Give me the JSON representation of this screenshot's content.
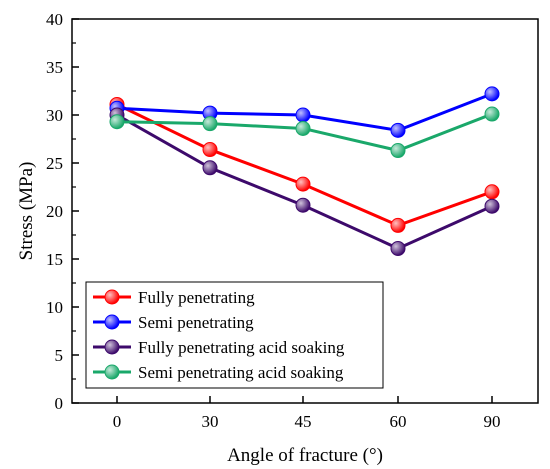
{
  "chart_data": {
    "type": "line",
    "title": "",
    "xlabel": "Angle of fracture (°)",
    "ylabel": "Stress (MPa)",
    "categories": [
      "0",
      "30",
      "45",
      "60",
      "90"
    ],
    "ylim": [
      0,
      40
    ],
    "yticks": [
      0,
      5,
      10,
      15,
      20,
      25,
      30,
      35,
      40
    ],
    "grid": false,
    "legend_position": "bottom-left",
    "series": [
      {
        "name": "Fully penetrating",
        "color": "#ff0000",
        "values": [
          31.1,
          26.4,
          22.8,
          18.5,
          22.0
        ]
      },
      {
        "name": "Semi penetrating",
        "color": "#0000ff",
        "values": [
          30.7,
          30.2,
          30.0,
          28.4,
          32.2
        ]
      },
      {
        "name": "Fully penetrating acid soaking",
        "color": "#3d0a6b",
        "values": [
          30.0,
          24.5,
          20.6,
          16.1,
          20.5
        ]
      },
      {
        "name": "Semi penetrating acid soaking",
        "color": "#1aa86a",
        "values": [
          29.3,
          29.1,
          28.6,
          26.3,
          30.1
        ]
      }
    ]
  }
}
